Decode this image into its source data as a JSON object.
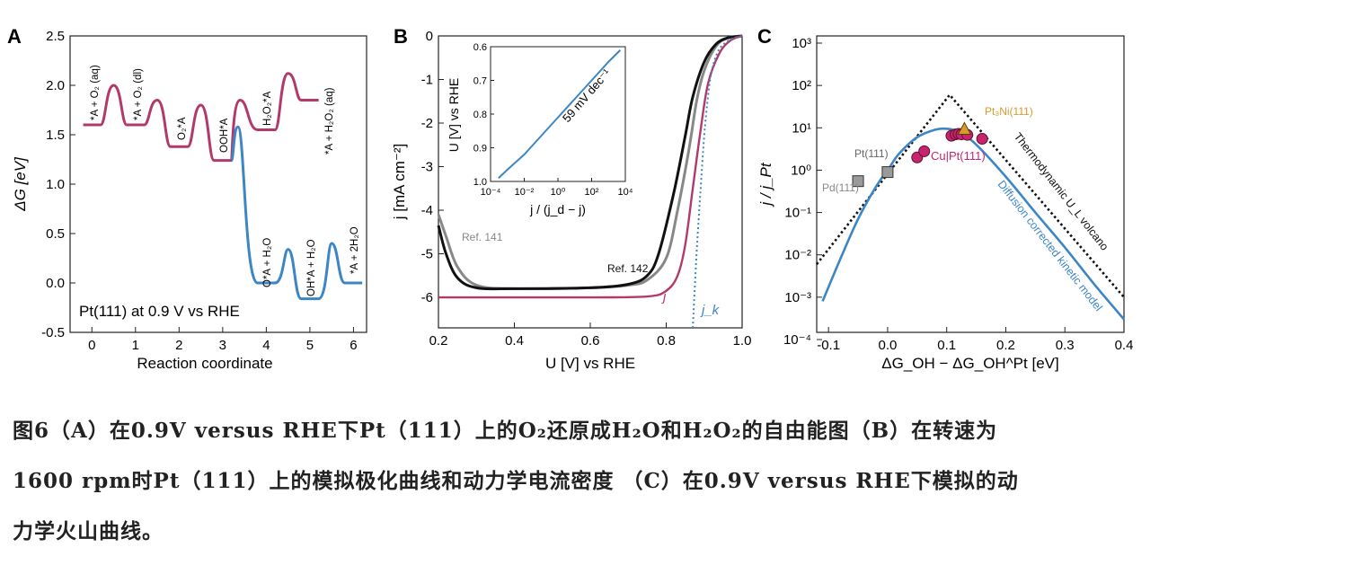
{
  "panelA": {
    "letter": "A",
    "ylabel": "ΔG [eV]",
    "xlabel": "Reaction coordinate",
    "annotation": "Pt(111) at 0.9 V vs RHE",
    "yticks": [
      "-0.5",
      "0.0",
      "0.5",
      "1.0",
      "1.5",
      "2.0",
      "2.5"
    ],
    "xticks": [
      "0",
      "1",
      "2",
      "3",
      "4",
      "5",
      "6"
    ],
    "colors": {
      "h2o2": "#b23a6a",
      "h2o": "#3d86c6"
    },
    "states": [
      "*A + O₂ (aq)",
      "*A + O₂ (dl)",
      "O₂*A",
      "OOH*A",
      "H₂O₂*A",
      "*A + H₂O₂ (aq)",
      "O*A + H₂O",
      "OH*A + H₂O",
      "*A + 2H₂O"
    ]
  },
  "panelB": {
    "letter": "B",
    "ylabel": "j [mA cm⁻²]",
    "xlabel": "U [V] vs RHE",
    "yticks": [
      "0",
      "-1",
      "-2",
      "-3",
      "-4",
      "-5",
      "-6"
    ],
    "xticks": [
      "0.2",
      "0.4",
      "0.6",
      "0.8",
      "1.0"
    ],
    "labels": {
      "ref141": "Ref. 141",
      "ref142": "Ref. 142",
      "j": "j",
      "jk": "j_k"
    },
    "inset": {
      "ylabel": "U [V] vs RHE",
      "xlabel": "j / (j_d − j)",
      "yticks": [
        "0.6",
        "0.7",
        "0.8",
        "0.9",
        "1.0"
      ],
      "xticks": [
        "10⁻⁴",
        "10⁻²",
        "10⁰",
        "10²",
        "10⁴"
      ],
      "slope": "59 mV dec⁻¹"
    }
  },
  "panelC": {
    "letter": "C",
    "ylabel": "j / j_Pt",
    "xlabel": "ΔG_OH − ΔG_OH^Pt [eV]",
    "xticks": [
      "-0.1",
      "0.0",
      "0.1",
      "0.2",
      "0.3",
      "0.4"
    ],
    "yticks": [
      "10⁻⁴",
      "10⁻³",
      "10⁻²",
      "10⁻¹",
      "10⁰",
      "10¹",
      "10²",
      "10³"
    ],
    "labels": {
      "pt3ni": "Pt₃Ni(111)",
      "pt": "Pt(111)",
      "pd": "Pd(111)",
      "cupt": "Cu|Pt(111)",
      "thermo": "Thermodynamic U_L volcano",
      "kinetic": "Diffusion corrected kinetic model"
    }
  },
  "caption": {
    "line1": "图6（A）在0.9V versus RHE下Pt（111）上的O₂还原成H₂O和H₂O₂的自由能图（B）在转速为",
    "line2": "1600 rpm时Pt（111）上的模拟极化曲线和动力学电流密度 （C）在0.9V versus RHE下模拟的动",
    "line3": "力学火山曲线。"
  },
  "chart_data": [
    {
      "type": "line",
      "title": "",
      "xlabel": "Reaction coordinate",
      "ylabel": "ΔG [eV]",
      "xlim": [
        -0.5,
        6.3
      ],
      "ylim": [
        -0.5,
        2.5
      ],
      "series": [
        {
          "name": "",
          "color": "#b23a6a",
          "levels": [
            [
              0,
              1.6
            ],
            [
              1,
              1.6
            ],
            [
              2,
              1.38
            ],
            [
              3,
              1.24
            ],
            [
              4,
              1.55
            ],
            [
              5,
              1.85
            ]
          ],
          "barriers": [
            [
              0.5,
              2.0
            ],
            [
              1.5,
              1.85
            ],
            [
              2.5,
              1.8
            ],
            [
              3.4,
              1.85
            ],
            [
              4.5,
              2.12
            ]
          ]
        },
        {
          "name": "",
          "color": "#3d86c6",
          "levels": [
            [
              3,
              1.24
            ],
            [
              4,
              0.0
            ],
            [
              5,
              -0.16
            ],
            [
              6,
              0.0
            ]
          ],
          "barriers": [
            [
              3.35,
              1.58
            ],
            [
              4.5,
              0.34
            ],
            [
              5.5,
              0.4
            ]
          ]
        }
      ]
    },
    {
      "type": "line",
      "xlabel": "U [V] vs RHE",
      "ylabel": "j [mA cm⁻²]",
      "xlim": [
        0.2,
        1.0
      ],
      "ylim": [
        -6.7,
        0
      ],
      "series": [
        {
          "name": "Ref. 141",
          "color": "#888888",
          "x": [
            0.2,
            0.22,
            0.25,
            0.3,
            0.4,
            0.6,
            0.7,
            0.75,
            0.8,
            0.83,
            0.86,
            0.88,
            0.9,
            0.93,
            0.96,
            1.0
          ],
          "y": [
            -4.1,
            -4.6,
            -5.3,
            -5.72,
            -5.8,
            -5.78,
            -5.72,
            -5.6,
            -5.1,
            -4.0,
            -2.6,
            -1.5,
            -0.8,
            -0.25,
            -0.05,
            0
          ]
        },
        {
          "name": "Ref. 142",
          "color": "#111111",
          "x": [
            0.2,
            0.22,
            0.25,
            0.3,
            0.4,
            0.6,
            0.7,
            0.75,
            0.78,
            0.82,
            0.85,
            0.87,
            0.9,
            0.93,
            0.96,
            1.0
          ],
          "y": [
            -4.35,
            -5.0,
            -5.55,
            -5.78,
            -5.8,
            -5.78,
            -5.7,
            -5.5,
            -5.0,
            -3.6,
            -2.3,
            -1.4,
            -0.6,
            -0.2,
            -0.05,
            0
          ]
        },
        {
          "name": "j",
          "color": "#b23a6a",
          "x": [
            0.2,
            0.6,
            0.75,
            0.8,
            0.83,
            0.85,
            0.87,
            0.89,
            0.91,
            0.94,
            0.97,
            1.0
          ],
          "y": [
            -6.0,
            -6.0,
            -5.98,
            -5.85,
            -5.5,
            -4.8,
            -3.5,
            -2.2,
            -1.1,
            -0.4,
            -0.1,
            0
          ]
        },
        {
          "name": "j_k",
          "color": "#3d86c6",
          "x": [
            0.87,
            0.88,
            0.89,
            0.9,
            0.91,
            0.92,
            0.94,
            0.97,
            1.0
          ],
          "y": [
            -6.7,
            -5.0,
            -3.6,
            -2.3,
            -1.4,
            -0.8,
            -0.3,
            -0.08,
            0
          ]
        }
      ],
      "inset": {
        "xscale": "log",
        "xlim": [
          0.0001,
          10000
        ],
        "ylim": [
          1.0,
          0.6
        ],
        "x": [
          0.0003,
          0.001,
          0.01,
          0.1,
          1,
          10,
          100,
          1000,
          5000
        ],
        "y": [
          0.99,
          0.965,
          0.92,
          0.865,
          0.81,
          0.755,
          0.7,
          0.645,
          0.61
        ]
      }
    },
    {
      "type": "scatter",
      "xlabel": "ΔG_OH − ΔG_OH^Pt [eV]",
      "ylabel": "j / j_Pt",
      "yscale": "log",
      "xlim": [
        -0.12,
        0.4
      ],
      "ylim": [
        0.0001,
        1000
      ],
      "series": [
        {
          "name": "Thermodynamic U_L volcano",
          "color": "#111111",
          "x": [
            -0.12,
            0.105,
            0.4
          ],
          "y": [
            0.006,
            60,
            0.001
          ]
        },
        {
          "name": "Diffusion corrected kinetic model",
          "color": "#3d86c6",
          "x": [
            -0.11,
            -0.08,
            -0.05,
            -0.02,
            0.0,
            0.02,
            0.05,
            0.08,
            0.1,
            0.12,
            0.15,
            0.2,
            0.25,
            0.3,
            0.35,
            0.4
          ],
          "y": [
            0.0008,
            0.008,
            0.07,
            0.4,
            1.0,
            2.5,
            6,
            9,
            9.5,
            8,
            4,
            0.7,
            0.1,
            0.015,
            0.002,
            0.0003
          ]
        },
        {
          "name": "Pt(111)",
          "color": "#888888",
          "x": [
            0.0
          ],
          "y": [
            0.9
          ]
        },
        {
          "name": "Pd(111)",
          "color": "#888888",
          "x": [
            -0.05
          ],
          "y": [
            0.55
          ]
        },
        {
          "name": "Pt₃Ni(111)",
          "color": "#d79a2e",
          "x": [
            0.13
          ],
          "y": [
            9
          ]
        },
        {
          "name": "Cu|Pt(111)",
          "color": "#c8246e",
          "x": [
            0.05,
            0.062,
            0.108,
            0.115,
            0.12,
            0.125,
            0.135,
            0.16
          ],
          "y": [
            2.0,
            2.8,
            6.5,
            7.0,
            7.2,
            7.0,
            6.8,
            5.5
          ]
        }
      ]
    }
  ]
}
